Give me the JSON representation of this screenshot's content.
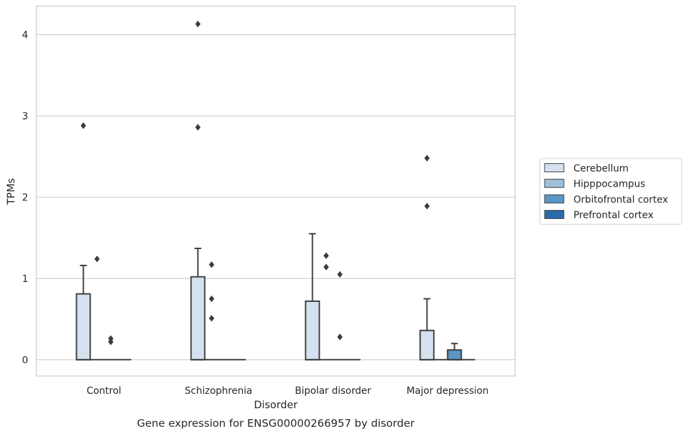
{
  "chart_data": {
    "type": "boxplot",
    "title": "",
    "caption": "Gene expression for ENSG00000266957 by disorder",
    "xlabel": "Disorder",
    "ylabel": "TPMs",
    "ylim": [
      -0.2,
      4.35
    ],
    "yticks": [
      0,
      1,
      2,
      3,
      4
    ],
    "grid": "horizontal",
    "legend_position": "right",
    "categories": [
      "Control",
      "Schizophrenia",
      "Bipolar disorder",
      "Major depression"
    ],
    "series": [
      {
        "name": "Cerebellum",
        "color": "#d4e2f0",
        "boxes": [
          {
            "q1": 0,
            "median": 0,
            "q3": 0.81,
            "whisker_low": 0,
            "whisker_high": 1.16,
            "outliers": [
              2.88
            ]
          },
          {
            "q1": 0,
            "median": 0,
            "q3": 1.02,
            "whisker_low": 0,
            "whisker_high": 1.37,
            "outliers": [
              2.86,
              4.13
            ]
          },
          {
            "q1": 0,
            "median": 0,
            "q3": 0.72,
            "whisker_low": 0,
            "whisker_high": 1.55,
            "outliers": []
          },
          {
            "q1": 0,
            "median": 0,
            "q3": 0.36,
            "whisker_low": 0,
            "whisker_high": 0.75,
            "outliers": [
              1.89,
              2.48
            ]
          }
        ]
      },
      {
        "name": "Hipppocampus",
        "color": "#9dc1dd",
        "boxes": [
          {
            "q1": 0,
            "median": 0,
            "q3": 0,
            "whisker_low": 0,
            "whisker_high": 0,
            "outliers": [
              1.24
            ]
          },
          {
            "q1": 0,
            "median": 0,
            "q3": 0,
            "whisker_low": 0,
            "whisker_high": 0,
            "outliers": [
              0.51,
              0.75,
              1.17
            ]
          },
          {
            "q1": 0,
            "median": 0,
            "q3": 0,
            "whisker_low": 0,
            "whisker_high": 0,
            "outliers": [
              1.14,
              1.28
            ]
          },
          {
            "q1": 0,
            "median": 0,
            "q3": 0,
            "whisker_low": 0,
            "whisker_high": 0,
            "outliers": []
          }
        ]
      },
      {
        "name": "Orbitofrontal cortex",
        "color": "#5a96c6",
        "boxes": [
          {
            "q1": 0,
            "median": 0,
            "q3": 0,
            "whisker_low": 0,
            "whisker_high": 0,
            "outliers": [
              0.22,
              0.26
            ]
          },
          {
            "q1": 0,
            "median": 0,
            "q3": 0,
            "whisker_low": 0,
            "whisker_high": 0,
            "outliers": []
          },
          {
            "q1": 0,
            "median": 0,
            "q3": 0,
            "whisker_low": 0,
            "whisker_high": 0,
            "outliers": [
              0.28,
              1.05
            ]
          },
          {
            "q1": 0,
            "median": 0,
            "q3": 0.12,
            "whisker_low": 0,
            "whisker_high": 0.2,
            "outliers": []
          }
        ]
      },
      {
        "name": "Prefrontal cortex",
        "color": "#2b6aa8",
        "boxes": [
          {
            "q1": 0,
            "median": 0,
            "q3": 0,
            "whisker_low": 0,
            "whisker_high": 0,
            "outliers": []
          },
          {
            "q1": 0,
            "median": 0,
            "q3": 0,
            "whisker_low": 0,
            "whisker_high": 0,
            "outliers": []
          },
          {
            "q1": 0,
            "median": 0,
            "q3": 0,
            "whisker_low": 0,
            "whisker_high": 0,
            "outliers": []
          },
          {
            "q1": 0,
            "median": 0,
            "q3": 0,
            "whisker_low": 0,
            "whisker_high": 0,
            "outliers": []
          }
        ]
      }
    ]
  }
}
